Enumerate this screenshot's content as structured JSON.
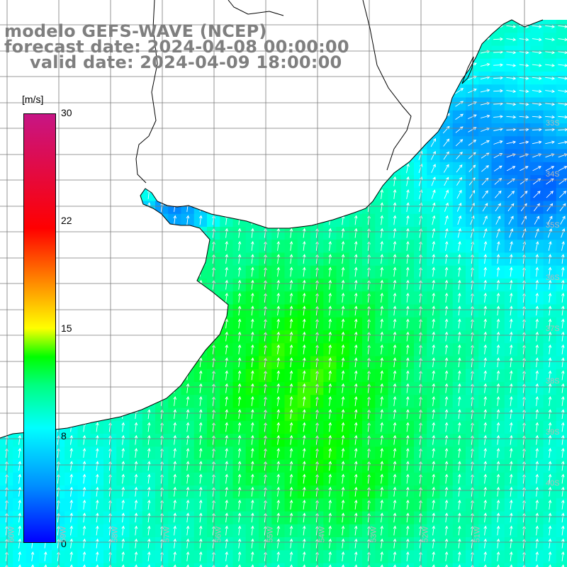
{
  "title": {
    "line1": "modelo GEFS-WAVE (NCEP)",
    "line2": "forecast date: 2024-04-08 00:00:00",
    "line3": "valid date: 2024-04-09 18:00:00"
  },
  "colorbar": {
    "unit": "[m/s]",
    "ticks": [
      "30",
      "22",
      "15",
      "8",
      "0"
    ],
    "min": 0,
    "max": 30,
    "stops": [
      {
        "value": 0,
        "color": "#0000ff"
      },
      {
        "value": 4,
        "color": "#0090ff"
      },
      {
        "value": 8,
        "color": "#00ffff"
      },
      {
        "value": 11,
        "color": "#00ff80"
      },
      {
        "value": 13,
        "color": "#00ff00"
      },
      {
        "value": 15,
        "color": "#ffff00"
      },
      {
        "value": 22,
        "color": "#ff0000"
      },
      {
        "value": 30,
        "color": "#c71585"
      }
    ]
  },
  "lon_labels": [
    "60W",
    "59W",
    "58W",
    "57W",
    "56W",
    "55W",
    "54W",
    "53W",
    "52W",
    "51W"
  ],
  "lat_labels": [
    "33S",
    "34S",
    "35S",
    "36S",
    "37S",
    "38S",
    "39S",
    "40S"
  ],
  "colors": {
    "land": "#ffffff",
    "grid": "#7a7a7a",
    "coast": "#000000",
    "arrows": "#ffffff",
    "title": "#7f7f7f"
  }
}
